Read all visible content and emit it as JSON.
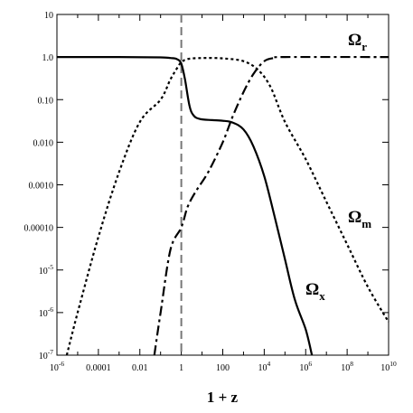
{
  "chart_data": {
    "type": "line",
    "xlabel": "1 + z",
    "ylabel": "",
    "x_scale": "log",
    "y_scale": "log",
    "xlim": [
      1e-06,
      10000000000.0
    ],
    "ylim": [
      1e-07,
      10
    ],
    "grid": false,
    "x_ticks": [
      {
        "value": 1e-06,
        "base": "10",
        "exp": "-6"
      },
      {
        "value": 0.0001,
        "text": "0.0001"
      },
      {
        "value": 0.01,
        "text": "0.01"
      },
      {
        "value": 1,
        "text": "1"
      },
      {
        "value": 100,
        "text": "100"
      },
      {
        "value": 10000.0,
        "base": "10",
        "exp": "4"
      },
      {
        "value": 1000000.0,
        "base": "10",
        "exp": "6"
      },
      {
        "value": 100000000.0,
        "base": "10",
        "exp": "8"
      },
      {
        "value": 10000000000.0,
        "base": "10",
        "exp": "10"
      }
    ],
    "y_ticks": [
      {
        "value": 10,
        "text": "10"
      },
      {
        "value": 1,
        "text": "1.0"
      },
      {
        "value": 0.1,
        "text": "0.10"
      },
      {
        "value": 0.01,
        "text": "0.010"
      },
      {
        "value": 0.001,
        "text": "0.0010"
      },
      {
        "value": 0.0001,
        "text": "0.00010"
      },
      {
        "value": 1e-05,
        "base": "10",
        "exp": "-5"
      },
      {
        "value": 1e-06,
        "base": "10",
        "exp": "-6"
      },
      {
        "value": 1e-07,
        "base": "10",
        "exp": "-7"
      }
    ],
    "vline": {
      "x": 1,
      "style": "dashed",
      "color": "#777777"
    },
    "series": [
      {
        "name": "Ω_x",
        "label_main": "Ω",
        "label_sub": "x",
        "style": "solid",
        "points": [
          [
            1e-06,
            1.0
          ],
          [
            0.001,
            1.0
          ],
          [
            0.1,
            0.98
          ],
          [
            0.3,
            0.95
          ],
          [
            0.6,
            0.9
          ],
          [
            1,
            0.7
          ],
          [
            1.5,
            0.3
          ],
          [
            2.5,
            0.07
          ],
          [
            4,
            0.042
          ],
          [
            8,
            0.035
          ],
          [
            30,
            0.033
          ],
          [
            100,
            0.032
          ],
          [
            300,
            0.029
          ],
          [
            1000,
            0.02
          ],
          [
            3000,
            0.008
          ],
          [
            10000.0,
            0.0016
          ],
          [
            30000.0,
            0.0002
          ],
          [
            100000.0,
            1.8e-05
          ],
          [
            300000.0,
            2e-06
          ],
          [
            1000000.0,
            4e-07
          ],
          [
            2000000.0,
            1e-07
          ]
        ]
      },
      {
        "name": "Ω_m",
        "label_main": "Ω",
        "label_sub": "m",
        "style": "dotted",
        "points": [
          [
            3e-06,
            1e-07
          ],
          [
            1e-05,
            1e-06
          ],
          [
            0.0001,
            6e-05
          ],
          [
            0.001,
            0.002
          ],
          [
            0.01,
            0.03
          ],
          [
            0.1,
            0.1
          ],
          [
            0.3,
            0.3
          ],
          [
            0.7,
            0.6
          ],
          [
            1,
            0.75
          ],
          [
            2,
            0.9
          ],
          [
            10,
            0.95
          ],
          [
            100,
            0.93
          ],
          [
            1000,
            0.8
          ],
          [
            5000,
            0.5
          ],
          [
            20000.0,
            0.2
          ],
          [
            100000.0,
            0.03
          ],
          [
            1000000.0,
            0.004
          ],
          [
            10000000.0,
            0.0004
          ],
          [
            100000000.0,
            4e-05
          ],
          [
            1000000000.0,
            4e-06
          ],
          [
            10000000000.0,
            6e-07
          ]
        ]
      },
      {
        "name": "Ω_r",
        "label_main": "Ω",
        "label_sub": "r",
        "style": "dashdot",
        "points": [
          [
            0.05,
            1e-07
          ],
          [
            0.1,
            1e-06
          ],
          [
            0.3,
            3e-05
          ],
          [
            1,
            0.0001
          ],
          [
            2,
            0.0003
          ],
          [
            5,
            0.0007
          ],
          [
            20,
            0.002
          ],
          [
            100,
            0.01
          ],
          [
            300,
            0.04
          ],
          [
            1000,
            0.15
          ],
          [
            3000,
            0.4
          ],
          [
            10000.0,
            0.8
          ],
          [
            30000.0,
            0.95
          ],
          [
            100000.0,
            1.0
          ],
          [
            10000000000.0,
            1.0
          ]
        ]
      }
    ]
  }
}
